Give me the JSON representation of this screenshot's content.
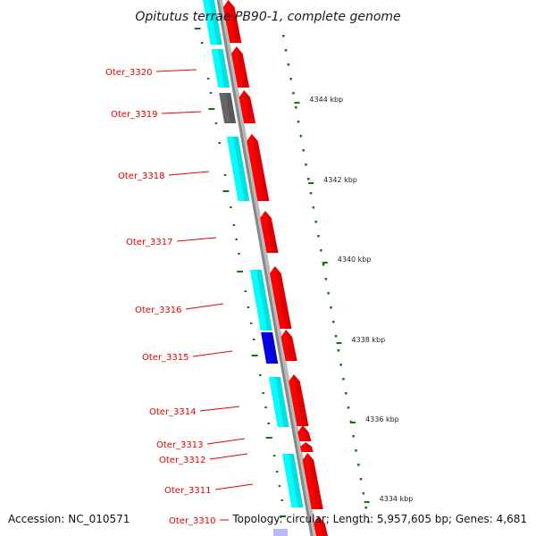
{
  "title": "Opitutus terrae PB90-1, complete genome",
  "footer": {
    "accession": "Accession: NC_010571",
    "topology": "Topology: circular; Length: 5,957,605 bp; Genes: 4,681"
  },
  "colors": {
    "forward_gene": "#ff0000",
    "cds_cyan": "#00ffff",
    "cds_blue": "#0000ee",
    "cds_gray": "#666666",
    "backbone": "#888888",
    "tick_green": "#0a7a0a",
    "gene_label": "#e00000",
    "low_gc_lavender": "#b8b8ff"
  },
  "gene_labels": [
    "Oter_3320",
    "Oter_3319",
    "Oter_3318",
    "Oter_3317",
    "Oter_3316",
    "Oter_3315",
    "Oter_3314",
    "Oter_3313",
    "Oter_3312",
    "Oter_3311",
    "Oter_3310"
  ],
  "kbp_labels": [
    "4344 kbp",
    "4342 kbp",
    "4340 kbp",
    "4338 kbp",
    "4336 kbp",
    "4334 kbp"
  ]
}
